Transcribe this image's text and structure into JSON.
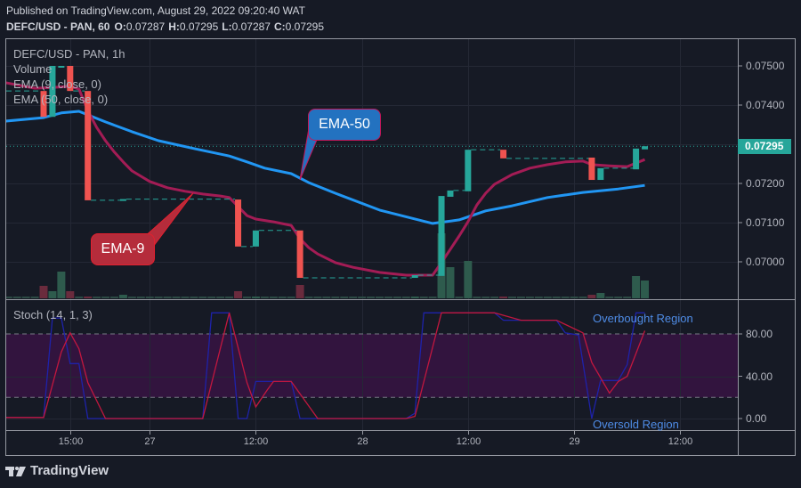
{
  "header": {
    "published": "Published on TradingView.com, August 29, 2022 09:20:40 WAT",
    "symbol": "DEFC/USD - PAN, 60",
    "ohlc": {
      "o_label": "O:",
      "o": "0.07287",
      "h_label": "H:",
      "h": "0.07295",
      "l_label": "L:",
      "l": "0.07287",
      "c_label": "C:",
      "c": "0.07295"
    }
  },
  "legend": {
    "main_title": "DEFC/USD - PAN, 1h",
    "volume": "Volume",
    "ema9": "EMA (9, close, 0)",
    "ema50": "EMA (50, close, 0)",
    "stoch": "Stoch (14, 1, 3)"
  },
  "annotations": {
    "ema50_callout": "EMA-50",
    "ema9_callout": "EMA-9",
    "overbought": "Overbought Region",
    "oversold": "Oversold Region"
  },
  "price_axis": {
    "ticks": [
      "0.07500",
      "0.07400",
      "0.07200",
      "0.07100",
      "0.07000"
    ],
    "current_price": "0.07295"
  },
  "stoch_axis": {
    "ticks": [
      "80.00",
      "40.00",
      "0.00"
    ]
  },
  "time_axis": {
    "ticks": [
      {
        "label": "15:00",
        "hour": 15
      },
      {
        "label": "27",
        "hour": 24
      },
      {
        "label": "12:00",
        "hour": 36
      },
      {
        "label": "28",
        "hour": 48
      },
      {
        "label": "12:00",
        "hour": 60
      },
      {
        "label": "29",
        "hour": 72
      },
      {
        "label": "12:00",
        "hour": 84
      }
    ]
  },
  "branding": {
    "logo_text": "TradingView"
  },
  "colors": {
    "background": "#161a25",
    "grid": "#242835",
    "frame": "#9598a1",
    "up": "#26a69a",
    "down": "#ef5350",
    "volume_up": "#2e5b4d",
    "volume_down": "#6a2b3d",
    "volume_neutral": "#2c4a44",
    "ema9": "#a31c55",
    "ema50": "#2196f3",
    "stoch_k": "#1e22aa",
    "stoch_d": "#c2173f",
    "stoch_band": "#32143e",
    "stoch_level": "#787b86",
    "last_price": "#26a69a",
    "callout_ema50_fill": "#2372c0",
    "callout_ema9_fill": "#b52c3b",
    "region_text": "#4f8ce6"
  },
  "chart_data": {
    "type": "candlestick",
    "title": "DEFC/USD - PAN, 1h",
    "x_origin": "2022-08-26 00:00",
    "x_unit": "hour",
    "ylim": [
      0.06905,
      0.0757
    ],
    "yaxis_ticks": [
      0.075,
      0.074,
      0.073,
      0.072,
      0.071,
      0.07
    ],
    "xaxis_ticks": [
      "15:00",
      "27",
      "12:00",
      "28",
      "12:00",
      "29",
      "12:00"
    ],
    "grid": true,
    "candles": [
      {
        "time": "08-26 12:00",
        "open": 0.07436,
        "high": 0.07436,
        "low": 0.0737,
        "close": 0.0737
      },
      {
        "time": "08-26 13:00",
        "open": 0.0737,
        "high": 0.075,
        "low": 0.0737,
        "close": 0.075
      },
      {
        "time": "08-26 14:00",
        "open": 0.075,
        "high": 0.075,
        "low": 0.075,
        "close": 0.075
      },
      {
        "time": "08-26 15:00",
        "open": 0.075,
        "high": 0.075,
        "low": 0.07436,
        "close": 0.07436
      },
      {
        "time": "08-26 17:00",
        "open": 0.07436,
        "high": 0.07436,
        "low": 0.07157,
        "close": 0.07157
      },
      {
        "time": "08-26 21:00",
        "open": 0.07157,
        "high": 0.0716,
        "low": 0.07157,
        "close": 0.0716
      },
      {
        "time": "08-27 10:00",
        "open": 0.07159,
        "high": 0.07159,
        "low": 0.07039,
        "close": 0.07039
      },
      {
        "time": "08-27 12:00",
        "open": 0.07039,
        "high": 0.0708,
        "low": 0.07039,
        "close": 0.0708
      },
      {
        "time": "08-27 17:00",
        "open": 0.0708,
        "high": 0.0708,
        "low": 0.06959,
        "close": 0.06959
      },
      {
        "time": "08-28 06:00",
        "open": 0.06959,
        "high": 0.06966,
        "low": 0.06959,
        "close": 0.06966
      },
      {
        "time": "08-28 09:00",
        "open": 0.06964,
        "high": 0.07168,
        "low": 0.06964,
        "close": 0.07168
      },
      {
        "time": "08-28 10:00",
        "open": 0.07166,
        "high": 0.07182,
        "low": 0.07166,
        "close": 0.07182
      },
      {
        "time": "08-28 12:00",
        "open": 0.0718,
        "high": 0.07286,
        "low": 0.0718,
        "close": 0.07286
      },
      {
        "time": "08-28 16:00",
        "open": 0.07286,
        "high": 0.07286,
        "low": 0.07264,
        "close": 0.07264
      },
      {
        "time": "08-29 02:00",
        "open": 0.07266,
        "high": 0.07266,
        "low": 0.07209,
        "close": 0.07209
      },
      {
        "time": "08-29 03:00",
        "open": 0.07209,
        "high": 0.07239,
        "low": 0.07209,
        "close": 0.07239
      },
      {
        "time": "08-29 07:00",
        "open": 0.07236,
        "high": 0.07289,
        "low": 0.07236,
        "close": 0.07289
      },
      {
        "time": "08-29 08:00",
        "open": 0.07287,
        "high": 0.07295,
        "low": 0.07287,
        "close": 0.07295
      }
    ],
    "volume_units": "relative (unlabeled axis)",
    "volume": [
      {
        "time": "08-26 12:00",
        "value": 14,
        "dir": "down"
      },
      {
        "time": "08-26 13:00",
        "value": 8,
        "dir": "up"
      },
      {
        "time": "08-26 14:00",
        "value": 30,
        "dir": "up"
      },
      {
        "time": "08-26 15:00",
        "value": 8,
        "dir": "down"
      },
      {
        "time": "08-26 17:00",
        "value": 2,
        "dir": "down"
      },
      {
        "time": "08-26 21:00",
        "value": 4,
        "dir": "up"
      },
      {
        "time": "08-27 10:00",
        "value": 8,
        "dir": "down"
      },
      {
        "time": "08-27 12:00",
        "value": 2,
        "dir": "up"
      },
      {
        "time": "08-27 17:00",
        "value": 15,
        "dir": "down"
      },
      {
        "time": "08-28 06:00",
        "value": 2,
        "dir": "up"
      },
      {
        "time": "08-28 09:00",
        "value": 73,
        "dir": "up"
      },
      {
        "time": "08-28 10:00",
        "value": 35,
        "dir": "up"
      },
      {
        "time": "08-28 12:00",
        "value": 42,
        "dir": "up"
      },
      {
        "time": "08-28 16:00",
        "value": 2,
        "dir": "down"
      },
      {
        "time": "08-29 02:00",
        "value": 4,
        "dir": "down"
      },
      {
        "time": "08-29 03:00",
        "value": 6,
        "dir": "up"
      },
      {
        "time": "08-29 07:00",
        "value": 25,
        "dir": "up"
      },
      {
        "time": "08-29 08:00",
        "value": 20,
        "dir": "up"
      }
    ],
    "volume_baseline": {
      "from_hour": 8,
      "to_hour": 80,
      "value": 2
    },
    "series": [
      {
        "name": "EMA (9, close, 0)",
        "label": "EMA-9",
        "points": [
          [
            7.7,
            0.07457
          ],
          [
            11,
            0.07443
          ],
          [
            13,
            0.07445
          ],
          [
            15,
            0.07448
          ],
          [
            16,
            0.07441
          ],
          [
            17,
            0.07386
          ],
          [
            18,
            0.07343
          ],
          [
            19,
            0.07309
          ],
          [
            20,
            0.0728
          ],
          [
            21,
            0.07255
          ],
          [
            22,
            0.07232
          ],
          [
            24,
            0.07205
          ],
          [
            26,
            0.07189
          ],
          [
            28,
            0.0718
          ],
          [
            30,
            0.07173
          ],
          [
            32,
            0.07168
          ],
          [
            33,
            0.07164
          ],
          [
            34,
            0.07141
          ],
          [
            35,
            0.07118
          ],
          [
            36,
            0.07109
          ],
          [
            38,
            0.07102
          ],
          [
            40,
            0.07093
          ],
          [
            41,
            0.07059
          ],
          [
            42,
            0.07036
          ],
          [
            43,
            0.0702
          ],
          [
            45,
            0.06998
          ],
          [
            47,
            0.06986
          ],
          [
            50,
            0.06973
          ],
          [
            53,
            0.06966
          ],
          [
            56,
            0.06966
          ],
          [
            57,
            0.06998
          ],
          [
            58,
            0.07032
          ],
          [
            59,
            0.07066
          ],
          [
            60,
            0.07102
          ],
          [
            61,
            0.07145
          ],
          [
            62,
            0.07175
          ],
          [
            63,
            0.07198
          ],
          [
            65,
            0.07223
          ],
          [
            67,
            0.07239
          ],
          [
            69,
            0.07248
          ],
          [
            71,
            0.07255
          ],
          [
            73,
            0.07257
          ],
          [
            74,
            0.07248
          ],
          [
            76,
            0.07245
          ],
          [
            78,
            0.07243
          ],
          [
            79,
            0.07252
          ],
          [
            80,
            0.07261
          ]
        ]
      },
      {
        "name": "EMA (50, close, 0)",
        "label": "EMA-50",
        "points": [
          [
            7.7,
            0.07359
          ],
          [
            12,
            0.07368
          ],
          [
            14,
            0.0738
          ],
          [
            16,
            0.07384
          ],
          [
            17,
            0.07375
          ],
          [
            19,
            0.07357
          ],
          [
            22,
            0.07332
          ],
          [
            25,
            0.07309
          ],
          [
            29,
            0.07289
          ],
          [
            33,
            0.0727
          ],
          [
            35,
            0.07255
          ],
          [
            37,
            0.07239
          ],
          [
            40,
            0.07225
          ],
          [
            42,
            0.07202
          ],
          [
            45,
            0.07175
          ],
          [
            50,
            0.07132
          ],
          [
            56,
            0.07098
          ],
          [
            59,
            0.07107
          ],
          [
            62,
            0.0713
          ],
          [
            65,
            0.07143
          ],
          [
            69,
            0.07164
          ],
          [
            73,
            0.07177
          ],
          [
            77,
            0.07186
          ],
          [
            80,
            0.07195
          ]
        ]
      }
    ],
    "stochastic": {
      "title": "Stoch (14, 1, 3)",
      "ylim": [
        -12,
        112
      ],
      "upper_band": 80,
      "lower_band": 20,
      "annotations": [
        "Overbought Region",
        "Oversold Region"
      ],
      "k": [
        [
          7.7,
          1
        ],
        [
          12,
          1
        ],
        [
          13,
          95
        ],
        [
          14,
          95
        ],
        [
          15,
          52
        ],
        [
          16,
          52
        ],
        [
          17,
          0
        ],
        [
          30,
          0
        ],
        [
          31,
          100
        ],
        [
          33,
          100
        ],
        [
          34,
          0
        ],
        [
          35,
          0
        ],
        [
          36,
          35
        ],
        [
          40,
          35
        ],
        [
          41,
          0
        ],
        [
          53,
          0
        ],
        [
          54,
          5
        ],
        [
          55,
          100
        ],
        [
          63,
          100
        ],
        [
          64,
          93
        ],
        [
          70,
          93
        ],
        [
          71,
          81
        ],
        [
          72.5,
          79
        ],
        [
          74,
          0
        ],
        [
          75,
          36
        ],
        [
          77,
          36
        ],
        [
          78,
          51
        ],
        [
          79,
          100
        ],
        [
          80,
          100
        ]
      ],
      "d": [
        [
          7.7,
          1
        ],
        [
          12,
          1
        ],
        [
          14,
          63
        ],
        [
          15,
          81
        ],
        [
          16,
          66
        ],
        [
          17,
          34
        ],
        [
          19,
          0
        ],
        [
          30,
          0
        ],
        [
          33,
          100
        ],
        [
          35,
          34
        ],
        [
          36,
          11
        ],
        [
          37.3,
          27
        ],
        [
          38,
          35
        ],
        [
          40,
          35
        ],
        [
          43,
          0
        ],
        [
          53,
          0
        ],
        [
          54,
          2
        ],
        [
          57,
          100
        ],
        [
          63,
          100
        ],
        [
          66,
          93
        ],
        [
          70,
          93
        ],
        [
          73,
          81
        ],
        [
          74,
          53
        ],
        [
          76,
          24
        ],
        [
          77,
          35
        ],
        [
          78,
          40
        ],
        [
          80,
          83
        ]
      ]
    }
  }
}
